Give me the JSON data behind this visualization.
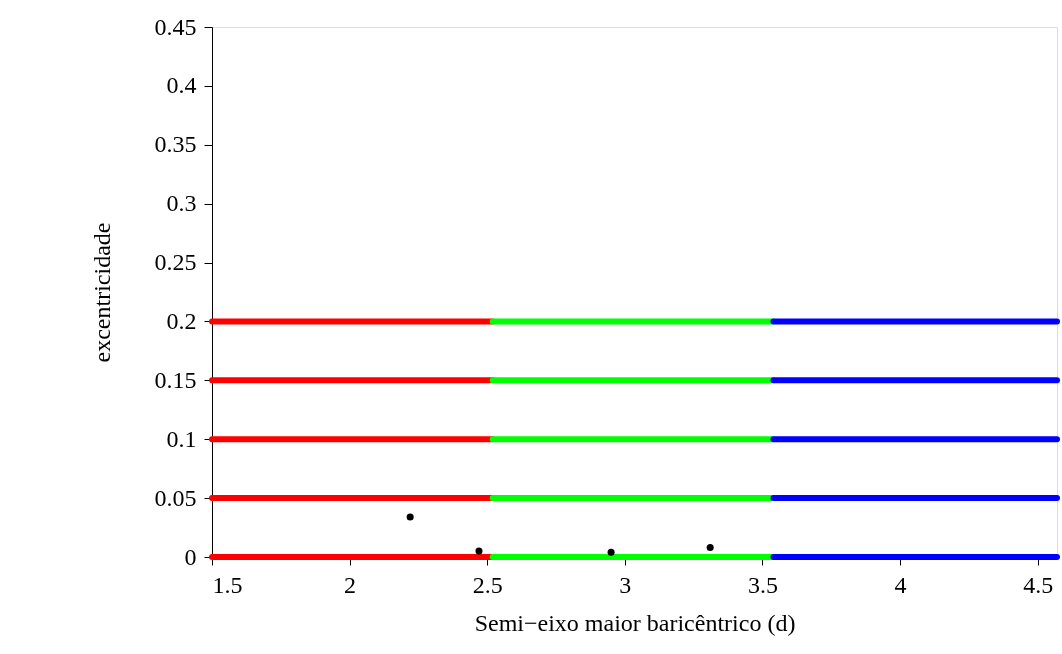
{
  "chart_data": {
    "type": "line",
    "xlabel": "Semi−eixo maior baricêntrico (d)",
    "ylabel": "excentricidade",
    "xlim": [
      1.5,
      4.57
    ],
    "xticks": [
      1.5,
      2,
      2.5,
      3,
      3.5,
      4,
      4.5
    ],
    "ylim": [
      0,
      0.45
    ],
    "yticks": [
      0,
      0.05,
      0.1,
      0.15,
      0.2,
      0.25,
      0.3,
      0.35,
      0.4,
      0.45
    ],
    "grid": false,
    "line_style": "solid",
    "marker": "none",
    "series": [
      {
        "color": "#ff0000",
        "x": [
          1.5,
          2.52
        ],
        "values": [
          0,
          0
        ]
      },
      {
        "color": "#ff0000",
        "x": [
          1.5,
          2.52
        ],
        "values": [
          0.05,
          0.05
        ]
      },
      {
        "color": "#ff0000",
        "x": [
          1.5,
          2.52
        ],
        "values": [
          0.1,
          0.1
        ]
      },
      {
        "color": "#ff0000",
        "x": [
          1.5,
          2.52
        ],
        "values": [
          0.15,
          0.15
        ]
      },
      {
        "color": "#ff0000",
        "x": [
          1.5,
          2.52
        ],
        "values": [
          0.2,
          0.2
        ]
      },
      {
        "color": "#00ff00",
        "x": [
          2.52,
          3.54
        ],
        "values": [
          0,
          0
        ]
      },
      {
        "color": "#00ff00",
        "x": [
          2.52,
          3.54
        ],
        "values": [
          0.05,
          0.05
        ]
      },
      {
        "color": "#00ff00",
        "x": [
          2.52,
          3.54
        ],
        "values": [
          0.1,
          0.1
        ]
      },
      {
        "color": "#00ff00",
        "x": [
          2.52,
          3.54
        ],
        "values": [
          0.15,
          0.15
        ]
      },
      {
        "color": "#00ff00",
        "x": [
          2.52,
          3.54
        ],
        "values": [
          0.2,
          0.2
        ]
      },
      {
        "color": "#0000ff",
        "x": [
          3.54,
          4.57
        ],
        "values": [
          0,
          0
        ]
      },
      {
        "color": "#0000ff",
        "x": [
          3.54,
          4.57
        ],
        "values": [
          0.05,
          0.05
        ]
      },
      {
        "color": "#0000ff",
        "x": [
          3.54,
          4.57
        ],
        "values": [
          0.1,
          0.1
        ]
      },
      {
        "color": "#0000ff",
        "x": [
          3.54,
          4.57
        ],
        "values": [
          0.15,
          0.15
        ]
      },
      {
        "color": "#0000ff",
        "x": [
          3.54,
          4.57
        ],
        "values": [
          0.2,
          0.2
        ]
      },
      {
        "type": "scatter",
        "color": "#000000",
        "marker": "circle",
        "x": [
          2.22,
          2.47,
          2.95,
          3.31
        ],
        "values": [
          0.034,
          0.005,
          0.004,
          0.008
        ]
      }
    ]
  }
}
